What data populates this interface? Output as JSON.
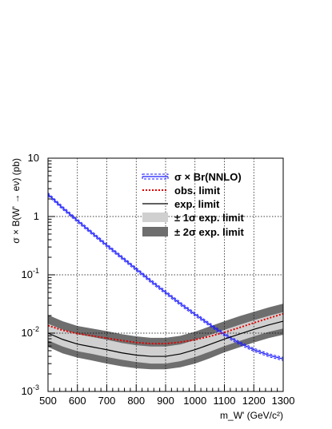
{
  "chart_data": {
    "type": "line",
    "title": "",
    "xlabel": "m_W' (GeV/c²)",
    "ylabel": "σ × B(W' → eν) (pb)",
    "xlim": [
      500,
      1300
    ],
    "ylim": [
      0.001,
      10
    ],
    "yscale": "log",
    "grid": true,
    "legend_position": "top-right",
    "x_ticks": [
      500,
      600,
      700,
      800,
      900,
      1000,
      1100,
      1200,
      1300
    ],
    "x_tick_labels": [
      "500",
      "600",
      "700",
      "800",
      "900",
      "1000",
      "1100",
      "1200",
      "1300"
    ],
    "y_ticks": [
      0.001,
      0.01,
      0.1,
      1,
      10
    ],
    "series": [
      {
        "name": "σ × Br(NNLO)",
        "color": "#1a1aff",
        "style": "band-outline",
        "x": [
          500,
          550,
          600,
          650,
          700,
          750,
          800,
          850,
          900,
          950,
          1000,
          1050,
          1100,
          1150,
          1200,
          1250,
          1300
        ],
        "y": [
          2.4,
          1.4,
          0.85,
          0.52,
          0.32,
          0.2,
          0.125,
          0.078,
          0.05,
          0.032,
          0.021,
          0.014,
          0.0095,
          0.0068,
          0.0052,
          0.0042,
          0.0036
        ],
        "band_rel": 0.06
      },
      {
        "name": "obs. limit",
        "color": "#e00000",
        "style": "dotted",
        "x": [
          500,
          550,
          600,
          650,
          700,
          750,
          800,
          850,
          900,
          950,
          1000,
          1050,
          1100,
          1150,
          1200,
          1250,
          1300
        ],
        "y": [
          0.0135,
          0.0112,
          0.0098,
          0.009,
          0.0082,
          0.0075,
          0.0069,
          0.0066,
          0.0066,
          0.007,
          0.0077,
          0.0088,
          0.0103,
          0.0124,
          0.015,
          0.018,
          0.0215
        ]
      },
      {
        "name": "exp. limit",
        "color": "#000000",
        "style": "solid",
        "x": [
          500,
          550,
          600,
          650,
          700,
          750,
          800,
          850,
          900,
          950,
          1000,
          1050,
          1100,
          1150,
          1200,
          1250,
          1300
        ],
        "y": [
          0.01,
          0.0078,
          0.0065,
          0.0058,
          0.0052,
          0.0046,
          0.0042,
          0.004,
          0.004,
          0.0044,
          0.0052,
          0.0064,
          0.0079,
          0.0096,
          0.0116,
          0.0138,
          0.016
        ]
      },
      {
        "name": "± 1σ exp. limit",
        "color": "#d0d0d0",
        "style": "band",
        "x": [
          500,
          550,
          600,
          650,
          700,
          750,
          800,
          850,
          900,
          950,
          1000,
          1050,
          1100,
          1150,
          1200,
          1250,
          1300
        ],
        "y_low": [
          0.0075,
          0.0059,
          0.0049,
          0.0044,
          0.0039,
          0.0035,
          0.0032,
          0.003,
          0.003,
          0.0033,
          0.0039,
          0.0048,
          0.006,
          0.0073,
          0.0088,
          0.0105,
          0.012
        ],
        "y_high": [
          0.0145,
          0.0115,
          0.0096,
          0.0086,
          0.0077,
          0.0068,
          0.0062,
          0.0059,
          0.0059,
          0.0064,
          0.0076,
          0.0093,
          0.0114,
          0.0138,
          0.0166,
          0.0197,
          0.023
        ]
      },
      {
        "name": "± 2σ exp. limit",
        "color": "#6e6e6e",
        "style": "band",
        "x": [
          500,
          550,
          600,
          650,
          700,
          750,
          800,
          850,
          900,
          950,
          1000,
          1050,
          1100,
          1150,
          1200,
          1250,
          1300
        ],
        "y_low": [
          0.0058,
          0.0045,
          0.0038,
          0.0034,
          0.003,
          0.0027,
          0.0025,
          0.0024,
          0.0024,
          0.0026,
          0.003,
          0.0037,
          0.0047,
          0.0057,
          0.0069,
          0.0082,
          0.0094
        ],
        "y_high": [
          0.0205,
          0.016,
          0.0133,
          0.012,
          0.0108,
          0.0096,
          0.0088,
          0.0083,
          0.0083,
          0.009,
          0.0106,
          0.013,
          0.016,
          0.0195,
          0.0232,
          0.0275,
          0.032
        ]
      }
    ]
  }
}
